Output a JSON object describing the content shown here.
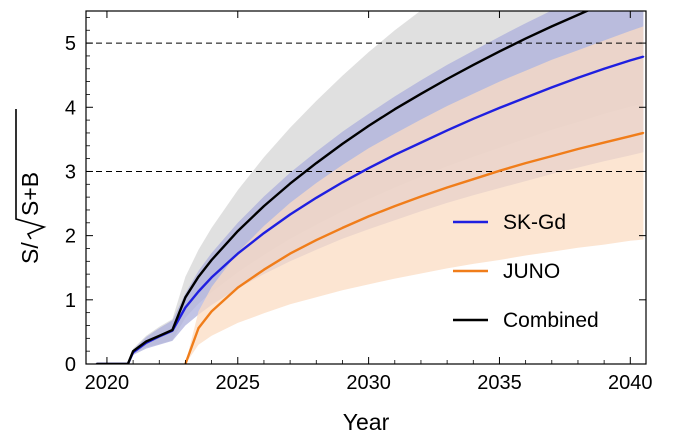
{
  "chart_data": {
    "type": "line",
    "title": "",
    "xlabel": "Year",
    "ylabel": "S/√S+B",
    "ylabel_prefix": "S/",
    "ylabel_radicand": "S+B",
    "xlim": [
      2019.2,
      2040.6
    ],
    "ylim": [
      0,
      5.5
    ],
    "xticks": [
      2020,
      2025,
      2030,
      2035,
      2040
    ],
    "yticks": [
      0,
      1,
      2,
      3,
      4,
      5
    ],
    "grid": false,
    "legend_position": "bottom-right",
    "reference_lines": [
      {
        "y": 3,
        "style": "dashed",
        "color": "#000000"
      },
      {
        "y": 5,
        "style": "dashed",
        "color": "#000000"
      }
    ],
    "x": [
      2019.6,
      2020.0,
      2020.5,
      2020.8,
      2021.0,
      2021.5,
      2022.0,
      2022.5,
      2023.0,
      2023.5,
      2024.0,
      2025.0,
      2026.0,
      2027.0,
      2028.0,
      2029.0,
      2030.0,
      2031.0,
      2032.0,
      2033.0,
      2034.0,
      2035.0,
      2036.0,
      2037.0,
      2038.0,
      2039.0,
      2040.0,
      2040.5
    ],
    "series": [
      {
        "name": "SK-Gd",
        "color": "#1f1fe0",
        "band_color": "#aeb0dc",
        "values": [
          0,
          0,
          0,
          0,
          0.18,
          0.33,
          0.43,
          0.52,
          0.88,
          1.13,
          1.35,
          1.72,
          2.04,
          2.33,
          2.59,
          2.83,
          3.05,
          3.26,
          3.45,
          3.64,
          3.82,
          3.99,
          4.15,
          4.31,
          4.46,
          4.6,
          4.73,
          4.79
        ],
        "band_low": [
          0,
          0,
          0,
          0,
          0.14,
          0.24,
          0.3,
          0.36,
          0.6,
          0.77,
          0.92,
          1.18,
          1.4,
          1.6,
          1.78,
          1.95,
          2.1,
          2.24,
          2.38,
          2.51,
          2.63,
          2.74,
          2.85,
          2.96,
          3.06,
          3.16,
          3.25,
          3.3
        ],
        "band_high": [
          0,
          0,
          0,
          0,
          0.22,
          0.42,
          0.56,
          0.68,
          1.1,
          1.45,
          1.73,
          2.2,
          2.61,
          2.98,
          3.31,
          3.62,
          3.9,
          4.17,
          4.42,
          4.66,
          4.88,
          5.1,
          5.31,
          5.51,
          5.7,
          5.89,
          6.06,
          6.15
        ]
      },
      {
        "name": "JUNO",
        "color": "#f07d1a",
        "band_color": "#fbdcc3",
        "values": [
          null,
          null,
          null,
          null,
          null,
          null,
          null,
          null,
          0.0,
          0.56,
          0.82,
          1.19,
          1.47,
          1.72,
          1.93,
          2.12,
          2.3,
          2.46,
          2.61,
          2.75,
          2.88,
          3.01,
          3.13,
          3.24,
          3.35,
          3.45,
          3.55,
          3.6
        ],
        "band_low": [
          null,
          null,
          null,
          null,
          null,
          null,
          null,
          null,
          0.0,
          0.3,
          0.44,
          0.64,
          0.79,
          0.93,
          1.04,
          1.15,
          1.24,
          1.33,
          1.41,
          1.49,
          1.56,
          1.62,
          1.69,
          1.75,
          1.81,
          1.86,
          1.92,
          1.94
        ],
        "band_high": [
          null,
          null,
          null,
          null,
          null,
          null,
          null,
          null,
          0.0,
          0.82,
          1.2,
          1.74,
          2.15,
          2.51,
          2.82,
          3.1,
          3.36,
          3.59,
          3.81,
          4.02,
          4.21,
          4.4,
          4.57,
          4.74,
          4.89,
          5.04,
          5.19,
          5.26
        ]
      },
      {
        "name": "Combined",
        "color": "#000000",
        "band_color": "#d6d6d6",
        "values": [
          0,
          0,
          0,
          0,
          0.2,
          0.35,
          0.44,
          0.53,
          1.04,
          1.36,
          1.62,
          2.07,
          2.46,
          2.81,
          3.13,
          3.43,
          3.71,
          3.97,
          4.21,
          4.44,
          4.66,
          4.87,
          5.07,
          5.26,
          5.44,
          5.62,
          5.78,
          5.86
        ],
        "band_low": [
          0,
          0,
          0,
          0,
          0.16,
          0.26,
          0.31,
          0.37,
          0.72,
          0.94,
          1.12,
          1.43,
          1.7,
          1.95,
          2.17,
          2.38,
          2.57,
          2.75,
          2.92,
          3.08,
          3.23,
          3.37,
          3.51,
          3.65,
          3.77,
          3.9,
          4.01,
          4.06
        ],
        "band_high": [
          0,
          0,
          0,
          0,
          0.24,
          0.44,
          0.58,
          0.7,
          1.36,
          1.78,
          2.12,
          2.71,
          3.22,
          3.68,
          4.1,
          4.49,
          4.86,
          5.2,
          5.51,
          5.81,
          6.1,
          6.37,
          6.64,
          6.89,
          7.13,
          7.36,
          7.57,
          7.68
        ]
      }
    ]
  }
}
